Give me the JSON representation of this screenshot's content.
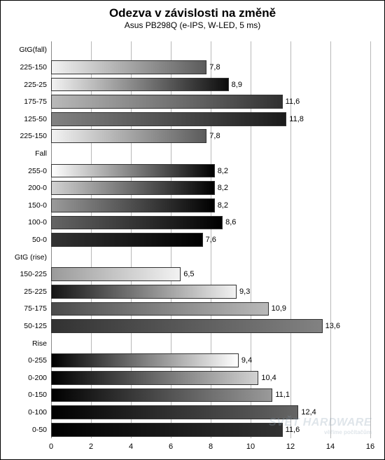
{
  "title": "Odezva v závislosti na změně",
  "subtitle": "Asus PB298Q  (e-IPS, W-LED, 5 ms)",
  "title_fontsize": 17,
  "subtitle_fontsize": 12,
  "watermark": "SVĚT HARDWARE",
  "watermark_sub": "věříme počítačům",
  "xaxis": {
    "min": 0,
    "max": 16,
    "step": 2,
    "ticks": [
      0,
      2,
      4,
      6,
      8,
      10,
      12,
      14,
      16
    ],
    "grid_color": "#b8b8b8"
  },
  "background_color": "#ffffff",
  "border_color": "#000000",
  "text_color": "#000000",
  "bar_border_color": "#333333",
  "rows": [
    {
      "kind": "section",
      "label": "GtG(fall)"
    },
    {
      "kind": "bar",
      "label": "225-150",
      "value": 7.8,
      "display": "7,8",
      "grad_from": "#f2f2f2",
      "grad_to": "#5b5b5b"
    },
    {
      "kind": "bar",
      "label": "225-25",
      "value": 8.9,
      "display": "8,9",
      "grad_from": "#f2f2f2",
      "grad_to": "#0c0c0c"
    },
    {
      "kind": "bar",
      "label": "175-75",
      "value": 11.6,
      "display": "11,6",
      "grad_from": "#b9b9b9",
      "grad_to": "#303030"
    },
    {
      "kind": "bar",
      "label": "125-50",
      "value": 11.8,
      "display": "11,8",
      "grad_from": "#828282",
      "grad_to": "#1b1b1b"
    },
    {
      "kind": "bar",
      "label": "225-150",
      "value": 7.8,
      "display": "7,8",
      "grad_from": "#f2f2f2",
      "grad_to": "#5b5b5b"
    },
    {
      "kind": "section",
      "label": "Fall"
    },
    {
      "kind": "bar",
      "label": "255-0",
      "value": 8.2,
      "display": "8,2",
      "grad_from": "#ffffff",
      "grad_to": "#000000"
    },
    {
      "kind": "bar",
      "label": "200-0",
      "value": 8.2,
      "display": "8,2",
      "grad_from": "#d2d2d2",
      "grad_to": "#000000"
    },
    {
      "kind": "bar",
      "label": "150-0",
      "value": 8.2,
      "display": "8,2",
      "grad_from": "#9a9a9a",
      "grad_to": "#000000"
    },
    {
      "kind": "bar",
      "label": "100-0",
      "value": 8.6,
      "display": "8,6",
      "grad_from": "#656565",
      "grad_to": "#000000"
    },
    {
      "kind": "bar",
      "label": "50-0",
      "value": 7.6,
      "display": "7,6",
      "grad_from": "#323232",
      "grad_to": "#000000"
    },
    {
      "kind": "section",
      "label": "GtG (rise)"
    },
    {
      "kind": "bar",
      "label": "150-225",
      "value": 6.5,
      "display": "6,5",
      "grad_from": "#9a9a9a",
      "grad_to": "#f2f2f2"
    },
    {
      "kind": "bar",
      "label": "25-225",
      "value": 9.3,
      "display": "9,3",
      "grad_from": "#141414",
      "grad_to": "#f2f2f2"
    },
    {
      "kind": "bar",
      "label": "75-175",
      "value": 10.9,
      "display": "10,9",
      "grad_from": "#4b4b4b",
      "grad_to": "#b9b9b9"
    },
    {
      "kind": "bar",
      "label": "50-125",
      "value": 13.6,
      "display": "13,6",
      "grad_from": "#323232",
      "grad_to": "#828282"
    },
    {
      "kind": "section",
      "label": "Rise"
    },
    {
      "kind": "bar",
      "label": "0-255",
      "value": 9.4,
      "display": "9,4",
      "grad_from": "#000000",
      "grad_to": "#ffffff"
    },
    {
      "kind": "bar",
      "label": "0-200",
      "value": 10.4,
      "display": "10,4",
      "grad_from": "#000000",
      "grad_to": "#d2d2d2"
    },
    {
      "kind": "bar",
      "label": "0-150",
      "value": 11.1,
      "display": "11,1",
      "grad_from": "#000000",
      "grad_to": "#9a9a9a"
    },
    {
      "kind": "bar",
      "label": "0-100",
      "value": 12.4,
      "display": "12,4",
      "grad_from": "#000000",
      "grad_to": "#656565"
    },
    {
      "kind": "bar",
      "label": "0-50",
      "value": 11.6,
      "display": "11,6",
      "grad_from": "#000000",
      "grad_to": "#323232"
    }
  ]
}
